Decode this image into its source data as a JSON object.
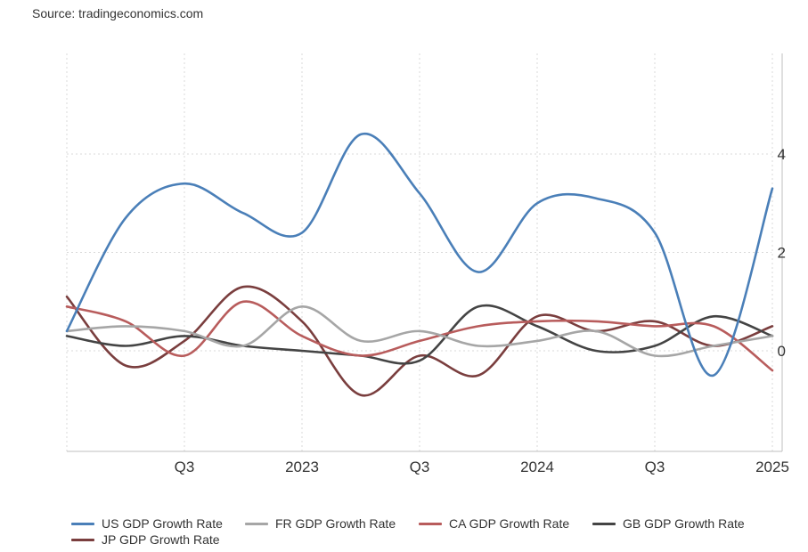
{
  "source_label": "Source: tradingeconomics.com",
  "chart_data": {
    "type": "line",
    "title": "",
    "xlabel": "",
    "ylabel": "",
    "x": [
      "2022Q1",
      "2022Q2",
      "2022Q3",
      "2022Q4",
      "2023Q1",
      "2023Q2",
      "2023Q3",
      "2023Q4",
      "2024Q1",
      "2024Q2",
      "2024Q3",
      "2024Q4",
      "2025Q1",
      "2025Q2"
    ],
    "x_tick_labels": [
      {
        "at": "2022Q3",
        "label": "Q3"
      },
      {
        "at": "2023Q1",
        "label": "2023"
      },
      {
        "at": "2023Q3",
        "label": "Q3"
      },
      {
        "at": "2024Q1",
        "label": "2024"
      },
      {
        "at": "2024Q3",
        "label": "Q3"
      },
      {
        "at": "2025Q1",
        "label": "2025"
      }
    ],
    "y_ticks": [
      0,
      2,
      4
    ],
    "ylim": [
      -2,
      6
    ],
    "y_axis_position": "right",
    "grid": true,
    "legend_position": "bottom",
    "series": [
      {
        "name": "US GDP Growth Rate",
        "color": "#4a7fb8",
        "values": [
          0.4,
          2.7,
          3.4,
          2.8,
          2.4,
          4.4,
          3.2,
          1.6,
          3.0,
          3.1,
          2.4,
          -0.5,
          3.3,
          null
        ]
      },
      {
        "name": "FR GDP Growth Rate",
        "color": "#a6a6a6",
        "values": [
          0.4,
          0.5,
          0.4,
          0.1,
          0.9,
          0.2,
          0.4,
          0.1,
          0.2,
          0.4,
          -0.1,
          0.1,
          0.3,
          null
        ]
      },
      {
        "name": "CA GDP Growth Rate",
        "color": "#b85c5c",
        "values": [
          0.9,
          0.6,
          -0.1,
          1.0,
          0.3,
          -0.1,
          0.2,
          0.5,
          0.6,
          0.6,
          0.5,
          0.5,
          -0.4,
          null
        ]
      },
      {
        "name": "GB GDP Growth Rate",
        "color": "#444444",
        "values": [
          0.3,
          0.1,
          0.3,
          0.1,
          0.0,
          -0.1,
          -0.2,
          0.9,
          0.5,
          0.0,
          0.1,
          0.7,
          0.3,
          null
        ]
      },
      {
        "name": "JP GDP Growth Rate",
        "color": "#7a3e3e",
        "values": [
          1.1,
          -0.3,
          0.2,
          1.3,
          0.6,
          -0.9,
          -0.1,
          -0.5,
          0.7,
          0.4,
          0.6,
          0.1,
          0.5,
          null
        ]
      }
    ]
  }
}
